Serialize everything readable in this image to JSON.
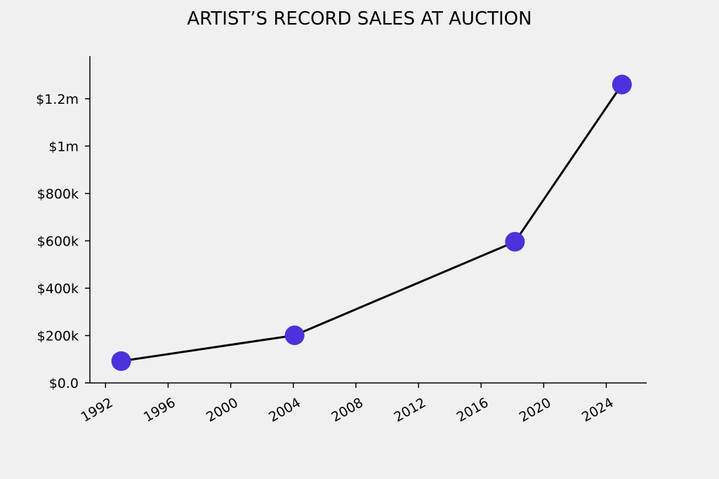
{
  "chart_data": {
    "type": "line",
    "title": "ARTIST’S RECORD SALES AT AUCTION",
    "xlabel": "",
    "ylabel": "",
    "x_scale": "time",
    "xlim": [
      "1991-01-01",
      "2026-08-01"
    ],
    "ylim": [
      0,
      1380000
    ],
    "x_ticks": [
      {
        "value": "1992-01-01",
        "label": "1992"
      },
      {
        "value": "1996-01-01",
        "label": "1996"
      },
      {
        "value": "2000-01-01",
        "label": "2000"
      },
      {
        "value": "2004-01-01",
        "label": "2004"
      },
      {
        "value": "2008-01-01",
        "label": "2008"
      },
      {
        "value": "2012-01-01",
        "label": "2012"
      },
      {
        "value": "2016-01-01",
        "label": "2016"
      },
      {
        "value": "2020-01-01",
        "label": "2020"
      },
      {
        "value": "2024-01-01",
        "label": "2024"
      }
    ],
    "y_ticks": [
      {
        "value": 0,
        "label": "$0.0"
      },
      {
        "value": 200000,
        "label": "$200k"
      },
      {
        "value": 400000,
        "label": "$400k"
      },
      {
        "value": 600000,
        "label": "$600k"
      },
      {
        "value": 800000,
        "label": "$800k"
      },
      {
        "value": 1000000,
        "label": "$1m"
      },
      {
        "value": 1200000,
        "label": "$1.2m"
      }
    ],
    "grid": false,
    "legend": "none",
    "series": [
      {
        "points": [
          {
            "x": "1993-01-01",
            "y": 92000
          },
          {
            "x": "2004-02-01",
            "y": 201000
          },
          {
            "x": "2018-03-01",
            "y": 596000
          },
          {
            "x": "2025-01-01",
            "y": 1260000
          }
        ],
        "line_color": "#000000",
        "marker_color": "#4a32dc"
      }
    ]
  }
}
